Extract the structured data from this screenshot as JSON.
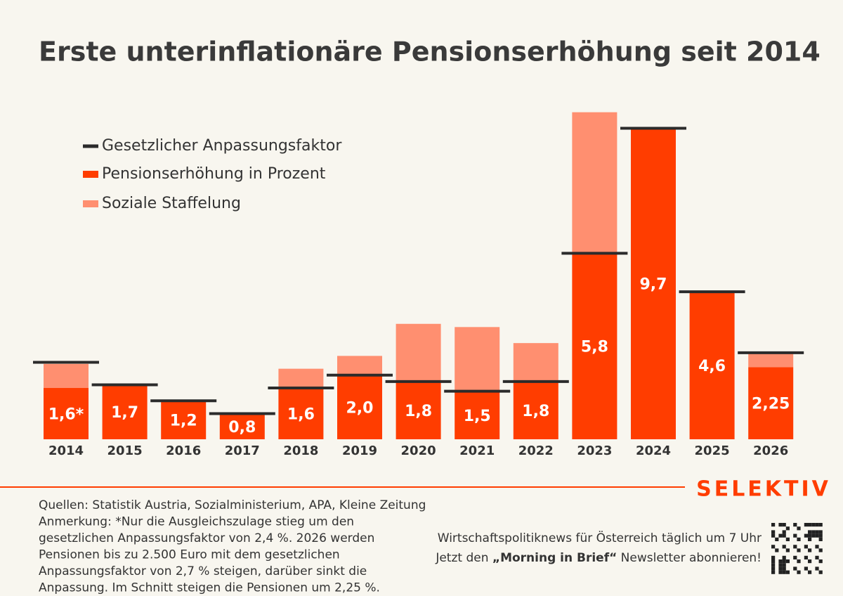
{
  "chart_data": {
    "type": "bar",
    "title": "Erste unterinflationäre Pensionserhöhung seit 2014",
    "categories": [
      "2014",
      "2015",
      "2016",
      "2017",
      "2018",
      "2019",
      "2020",
      "2021",
      "2022",
      "2023",
      "2024",
      "2025",
      "2026"
    ],
    "series": [
      {
        "name": "Gesetzlicher Anpassungsfaktor",
        "color": "#2b2b2b",
        "values": [
          2.4,
          1.7,
          1.2,
          0.8,
          1.6,
          2.0,
          1.8,
          1.5,
          1.8,
          5.8,
          9.7,
          4.6,
          2.7
        ]
      },
      {
        "name": "Pensionserhöhung in Prozent",
        "color": "#ff3d00",
        "values": [
          1.6,
          1.7,
          1.2,
          0.8,
          1.6,
          2.0,
          1.8,
          1.5,
          1.8,
          5.8,
          9.7,
          4.6,
          2.25
        ],
        "value_labels": [
          "1,6*",
          "1,7",
          "1,2",
          "0,8",
          "1,6",
          "2,0",
          "1,8",
          "1,5",
          "1,8",
          "5,8",
          "9,7",
          "4,6",
          "2,25"
        ]
      },
      {
        "name": "Soziale Staffelung",
        "color": "#ff8f70",
        "values": [
          0.75,
          null,
          null,
          null,
          0.6,
          0.6,
          1.8,
          2.0,
          1.2,
          4.4,
          null,
          null,
          0.45
        ]
      }
    ],
    "ylim": [
      0,
      10.5
    ],
    "grid": false
  },
  "footer": {
    "note_lines": [
      "Quellen: Statistik Austria, Sozialministerium, APA, Kleine Zeitung",
      "Anmerkung: *Nur die Ausgleichszulage stieg um den",
      "gesetzlichen Anpassungsfaktor von 2,4 %. 2026 werden",
      "Pensionen bis zu 2.500 Euro mit dem gesetzlichen",
      "Anpassungsfaktor von 2,7 % steigen, darüber sinkt die",
      "Anpassung. Im Schnitt steigen die Pensionen um 2,25 %."
    ],
    "newsletter": "Wirtschaftspolitiknews für Österreich täglich um 7 Uhr",
    "cta": [
      "Jetzt den ",
      "„Morning in Brief“",
      " Newsletter abonnieren!"
    ],
    "brand": "SELEKTIV"
  }
}
